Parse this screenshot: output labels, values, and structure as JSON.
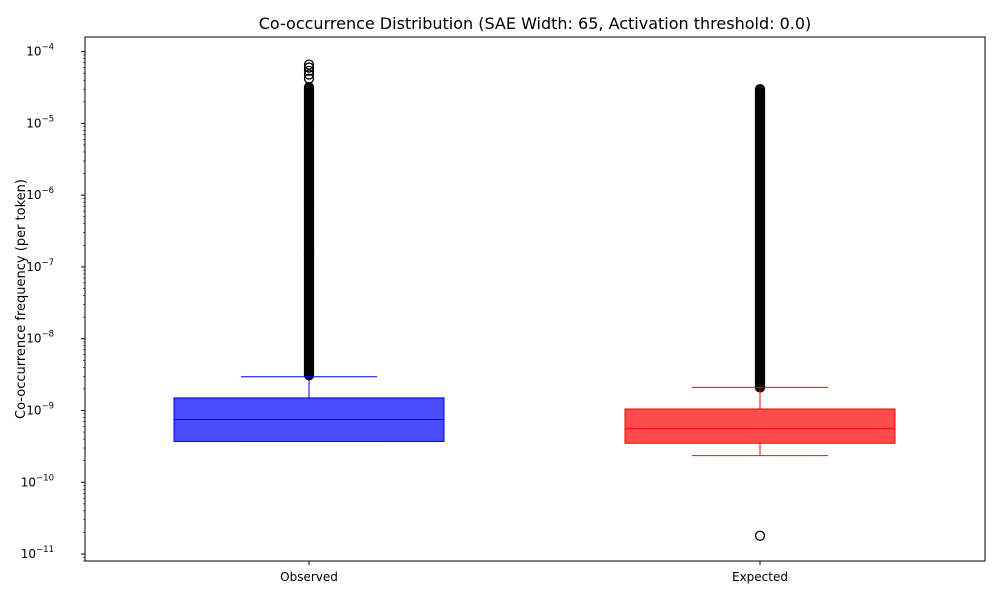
{
  "chart_data": {
    "type": "box",
    "title": "Co-occurrence Distribution (SAE Width: 65, Activation threshold: 0.0)",
    "xlabel": "",
    "ylabel": "Co-occurrence frequency (per token)",
    "yscale": "log",
    "ylim": [
      8e-12,
      0.00016
    ],
    "y_ticks": [
      {
        "value": 1e-11,
        "label": "10−11",
        "base": "10",
        "exp": "−11"
      },
      {
        "value": 1e-10,
        "label": "10−10",
        "base": "10",
        "exp": "−10"
      },
      {
        "value": 1e-09,
        "label": "10−9",
        "base": "10",
        "exp": "−9"
      },
      {
        "value": 1e-08,
        "label": "10−8",
        "base": "10",
        "exp": "−8"
      },
      {
        "value": 1e-07,
        "label": "10−7",
        "base": "10",
        "exp": "−7"
      },
      {
        "value": 1e-06,
        "label": "10−6",
        "base": "10",
        "exp": "−6"
      },
      {
        "value": 1e-05,
        "label": "10−5",
        "base": "10",
        "exp": "−5"
      },
      {
        "value": 0.0001,
        "label": "10−4",
        "base": "10",
        "exp": "−4"
      }
    ],
    "categories": [
      "Observed",
      "Expected"
    ],
    "series": [
      {
        "name": "Observed",
        "color": "#0000ff",
        "q1": 3.7e-10,
        "median": 7.5e-10,
        "q3": 1.5e-09,
        "whisker_low": 3.7e-10,
        "whisker_high": 2.95e-09,
        "outlier_range": [
          3.1e-09,
          3.2e-05
        ],
        "outliers_extra": [
          4.2e-05,
          4.8e-05,
          5.4e-05,
          6e-05,
          6.6e-05
        ]
      },
      {
        "name": "Expected",
        "color": "#ff0000",
        "q1": 3.5e-10,
        "median": 5.6e-10,
        "q3": 1.05e-09,
        "whisker_low": 2.35e-10,
        "whisker_high": 2.1e-09,
        "outlier_range": [
          2.1e-09,
          3e-05
        ],
        "outliers_extra": [
          1.8e-11
        ]
      }
    ]
  }
}
